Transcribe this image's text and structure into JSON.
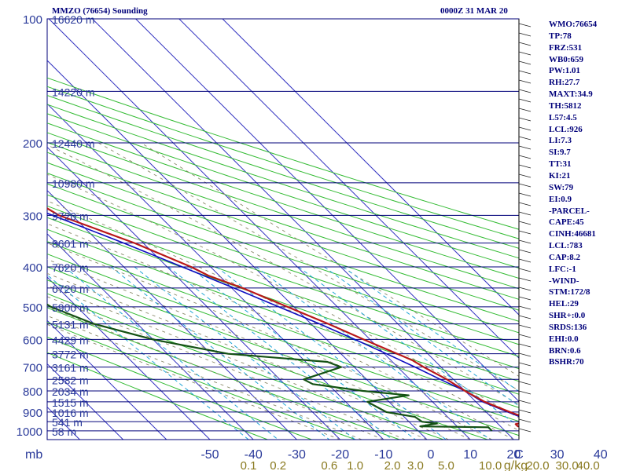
{
  "header": {
    "station": "MMZO (76654) Sounding",
    "time": "0000Z 31 MAR 20"
  },
  "colors": {
    "isobar": "#00007a",
    "isotherm": "#3030c0",
    "dry_adiabat": "#33bb33",
    "moist_adiabat": "#8a8a6a",
    "mixing_ratio": "#22a6d6",
    "temperature": "#b81818",
    "dewpoint": "#145214",
    "parcel": "#0c0cc0",
    "text": "#00007a",
    "mixing_ratio_labels": "#8a7a20",
    "axis_labels": "#2a3a9a"
  },
  "indices": [
    "WMO:76654",
    "TP:78",
    "FRZ:531",
    "WB0:659",
    "PW:1.01",
    "RH:27.7",
    "MAXT:34.9",
    "TH:5812",
    "L57:4.5",
    "LCL:926",
    "LI:7.3",
    "SI:9.7",
    "TT:31",
    "KI:21",
    "SW:79",
    "EI:0.9",
    "-PARCEL-",
    "CAPE:45",
    "CINH:46681",
    "LCL:783",
    "CAP:8.2",
    "LFC:-1",
    "-WIND-",
    "STM:172/8",
    "HEL:29",
    "SHR+:0.0",
    "SRDS:136",
    "EHI:0.0",
    "BRN:0.6",
    "BSHR:70"
  ],
  "chart_data": {
    "type": "skew-t",
    "title": "MMZO (76654) Sounding",
    "time": "0000Z 31 MAR 20",
    "pressure_levels_mb": [
      100,
      200,
      300,
      400,
      500,
      600,
      700,
      800,
      900,
      1000
    ],
    "pressure_labels": [
      "100",
      "200",
      "300",
      "400",
      "500",
      "600",
      "700",
      "800",
      "900",
      "1000"
    ],
    "pressure_axis_label": "mb",
    "temperature_ticks_c": [
      -50,
      -40,
      -30,
      -20,
      -10,
      0,
      10,
      20,
      30,
      40
    ],
    "temperature_labels": [
      "-50",
      "-40",
      "-30",
      "-20",
      "-10",
      "0",
      "10",
      "20",
      "30",
      "40"
    ],
    "mixing_ratio_ticks": [
      0.1,
      0.2,
      0.6,
      1.0,
      2.0,
      3.0,
      5.0,
      10.0,
      20.0,
      30.0,
      40.0
    ],
    "mixing_ratio_labels": [
      "0.1",
      "0.2",
      "0.6",
      "1.0",
      "2.0",
      "3.0",
      "5.0",
      "10.0",
      "20.0",
      "30.0",
      "40.0"
    ],
    "mixing_ratio_unit": "g/kg",
    "wind_axis_label": "C",
    "height_labels": [
      {
        "p": 100,
        "label": "16620 m"
      },
      {
        "p": 150,
        "label": "14220 m"
      },
      {
        "p": 200,
        "label": "12440 m"
      },
      {
        "p": 250,
        "label": "10980 m"
      },
      {
        "p": 300,
        "label": "9720 m"
      },
      {
        "p": 350,
        "label": "8601 m"
      },
      {
        "p": 400,
        "label": "7620 m"
      },
      {
        "p": 450,
        "label": "6720 m"
      },
      {
        "p": 500,
        "label": "5900 m"
      },
      {
        "p": 550,
        "label": "5131 m"
      },
      {
        "p": 600,
        "label": "4429 m"
      },
      {
        "p": 650,
        "label": "3772 m"
      },
      {
        "p": 700,
        "label": "3161 m"
      },
      {
        "p": 750,
        "label": "2582 m"
      },
      {
        "p": 800,
        "label": "2034 m"
      },
      {
        "p": 850,
        "label": "1515 m"
      },
      {
        "p": 900,
        "label": "1016 m"
      },
      {
        "p": 950,
        "label": "541 m"
      },
      {
        "p": 1000,
        "label": "58 m"
      }
    ],
    "temperature_profile": [
      [
        1000,
        34.9
      ],
      [
        989,
        32.5
      ],
      [
        975,
        24.0
      ],
      [
        963,
        24.0
      ],
      [
        950,
        27.0
      ],
      [
        925,
        27.5
      ],
      [
        900,
        25.5
      ],
      [
        850,
        22.0
      ],
      [
        800,
        20.0
      ],
      [
        750,
        18.5
      ],
      [
        700,
        16.0
      ],
      [
        675,
        15.0
      ],
      [
        650,
        13.0
      ],
      [
        600,
        8.5
      ],
      [
        550,
        4.0
      ],
      [
        500,
        -1.5
      ],
      [
        450,
        -7.5
      ],
      [
        420,
        -12.5
      ],
      [
        400,
        -14.5
      ],
      [
        350,
        -22.0
      ],
      [
        300,
        -33.0
      ],
      [
        280,
        -35.0
      ],
      [
        250,
        -40.0
      ],
      [
        200,
        -49.0
      ],
      [
        180,
        -53.0
      ],
      [
        150,
        -60.5
      ],
      [
        140,
        -62.0
      ],
      [
        130,
        -59.0
      ],
      [
        125,
        -59.0
      ],
      [
        115,
        -61.5
      ],
      [
        100,
        -68.0
      ]
    ],
    "dewpoint_profile": [
      [
        1000,
        17.0
      ],
      [
        980,
        17.0
      ],
      [
        975,
        1.5
      ],
      [
        960,
        6.0
      ],
      [
        950,
        3.0
      ],
      [
        925,
        2.5
      ],
      [
        900,
        -3.0
      ],
      [
        850,
        -5.0
      ],
      [
        820,
        6.0
      ],
      [
        800,
        -3.5
      ],
      [
        770,
        -13.5
      ],
      [
        750,
        -14.5
      ],
      [
        700,
        -3.0
      ],
      [
        680,
        -5.0
      ],
      [
        650,
        -26.0
      ],
      [
        600,
        -40.0
      ],
      [
        550,
        -50.0
      ],
      [
        500,
        -56.0
      ],
      [
        460,
        -58.0
      ],
      [
        420,
        -54.0
      ],
      [
        400,
        -55.0
      ],
      [
        350,
        -59.0
      ],
      [
        300,
        -67.0
      ],
      [
        270,
        -67.0
      ],
      [
        250,
        -66.0
      ],
      [
        230,
        -66.0
      ],
      [
        200,
        -63.5
      ],
      [
        190,
        -71.0
      ],
      [
        180,
        -73.0
      ],
      [
        175,
        -80.0
      ],
      [
        160,
        -80.0
      ],
      [
        150,
        -81.0
      ],
      [
        140,
        -85.0
      ],
      [
        125,
        -88.0
      ],
      [
        110,
        -90.0
      ],
      [
        100,
        -90.5
      ]
    ],
    "parcel_profile": [
      [
        950,
        28.5
      ],
      [
        900,
        25.0
      ],
      [
        850,
        21.5
      ],
      [
        800,
        20.0
      ],
      [
        750,
        17.0
      ],
      [
        700,
        14.0
      ],
      [
        650,
        10.5
      ],
      [
        600,
        6.5
      ],
      [
        550,
        2.0
      ],
      [
        500,
        -3.5
      ],
      [
        450,
        -9.5
      ],
      [
        400,
        -16.5
      ],
      [
        350,
        -24.5
      ],
      [
        300,
        -34.5
      ],
      [
        250,
        -46.0
      ],
      [
        200,
        -59.0
      ],
      [
        150,
        -72.0
      ],
      [
        120,
        -77.5
      ],
      [
        105,
        -83.5
      ]
    ]
  }
}
